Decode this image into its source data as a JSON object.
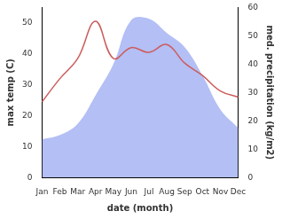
{
  "chart_data": {
    "type": "line",
    "x_label": "date (month)",
    "y_label": "max temp (C)",
    "y2_label": "med. precipitation (kg/m2)",
    "categories": [
      "Jan",
      "Feb",
      "Mar",
      "Apr",
      "May",
      "Jun",
      "Jul",
      "Aug",
      "Sep",
      "Oct",
      "Nov",
      "Dec"
    ],
    "series": [
      {
        "type": "area",
        "axis": "y2",
        "color": "#b3bff5",
        "values": [
          13.5,
          15,
          19,
          29,
          40,
          55.5,
          56,
          51,
          46,
          36,
          24,
          17.5
        ]
      },
      {
        "type": "line",
        "color": "#cd5c5c",
        "values": [
          24.5,
          32,
          38.5,
          50.5,
          38.5,
          42,
          40.5,
          43,
          37,
          33,
          28,
          26
        ]
      }
    ],
    "ylim": [
      0,
      55
    ],
    "yticks": [
      0,
      10,
      20,
      30,
      40,
      50
    ],
    "y2lim": [
      0,
      60
    ],
    "y2ticks": [
      0,
      10,
      20,
      30,
      40,
      50,
      60
    ],
    "grid": false
  }
}
